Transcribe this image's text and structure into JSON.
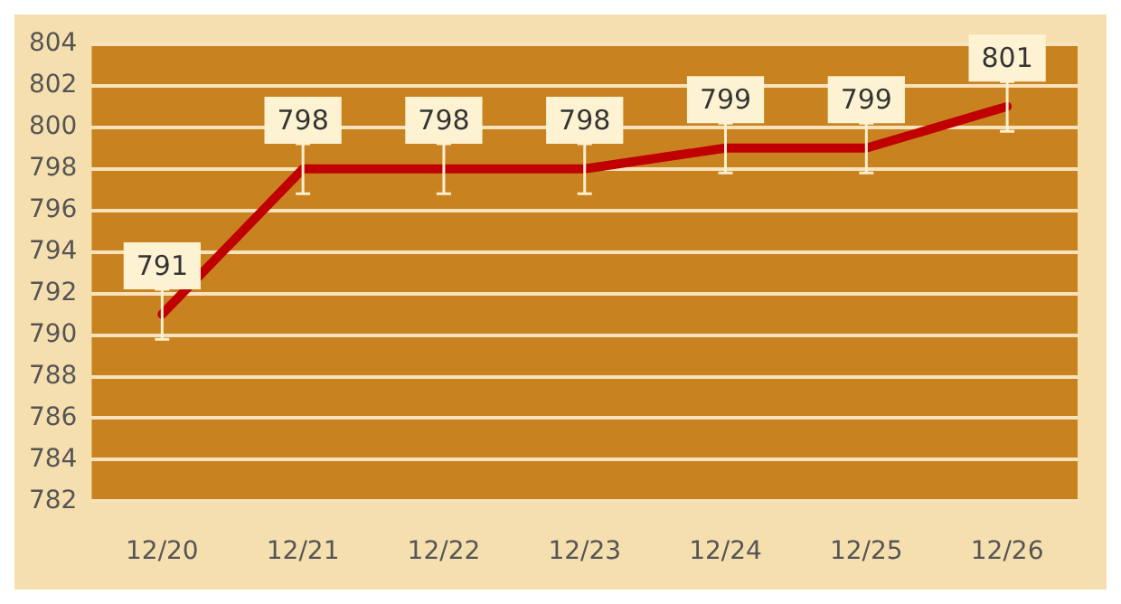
{
  "chart_data": {
    "type": "line",
    "categories": [
      "12/20",
      "12/21",
      "12/22",
      "12/23",
      "12/24",
      "12/25",
      "12/26"
    ],
    "series": [
      {
        "color": "#c00000",
        "values": [
          791,
          798,
          798,
          798,
          799,
          799,
          801
        ],
        "errors": [
          1.2,
          1.2,
          1.2,
          1.2,
          1.2,
          1.2,
          1.2
        ]
      }
    ],
    "ylim": [
      782,
      804
    ],
    "yticks": [
      782,
      784,
      786,
      788,
      790,
      792,
      794,
      796,
      798,
      800,
      802,
      804
    ],
    "grid": "y",
    "legend": false,
    "marker": "none",
    "line_style": "solid",
    "data_labels": true
  }
}
